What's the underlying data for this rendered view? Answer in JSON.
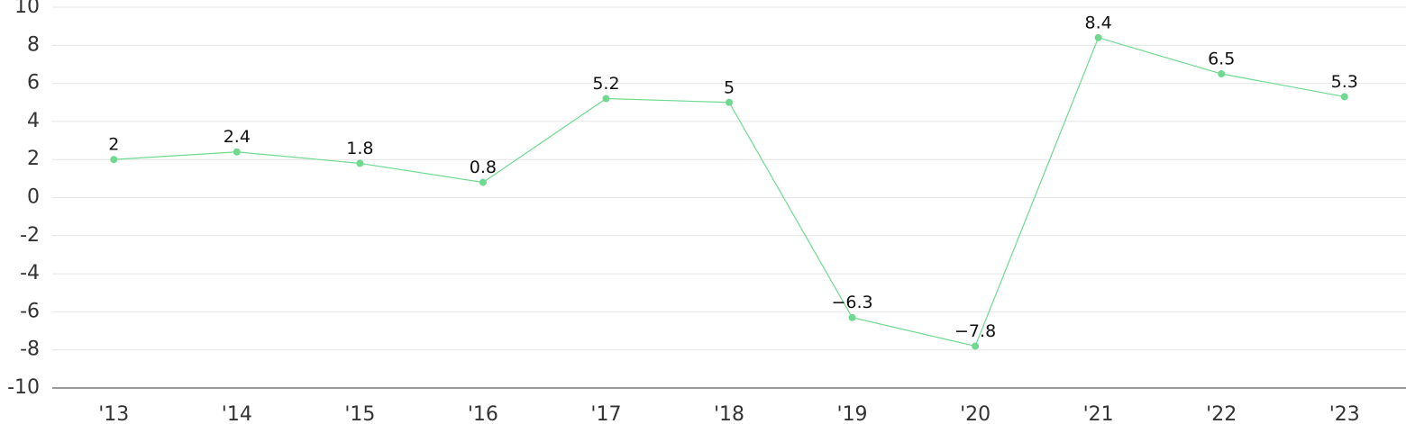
{
  "chart_data": {
    "type": "line",
    "categories": [
      "'13",
      "'14",
      "'15",
      "'16",
      "'17",
      "'18",
      "'19",
      "'20",
      "'21",
      "'22",
      "'23"
    ],
    "series": [
      {
        "color": "#6fd98f",
        "values": [
          2,
          2.4,
          1.8,
          0.8,
          5.2,
          5,
          -6.3,
          -7.8,
          8.4,
          6.5,
          5.3
        ],
        "value_labels": [
          "2",
          "2.4",
          "1.8",
          "0.8",
          "5.2",
          "5",
          "−6.3",
          "−7.8",
          "8.4",
          "6.5",
          "5.3"
        ]
      }
    ],
    "ylim": [
      -10,
      10
    ],
    "yticks": [
      -10,
      -8,
      -6,
      -4,
      -2,
      0,
      2,
      4,
      6,
      8,
      10
    ],
    "grid": true
  }
}
